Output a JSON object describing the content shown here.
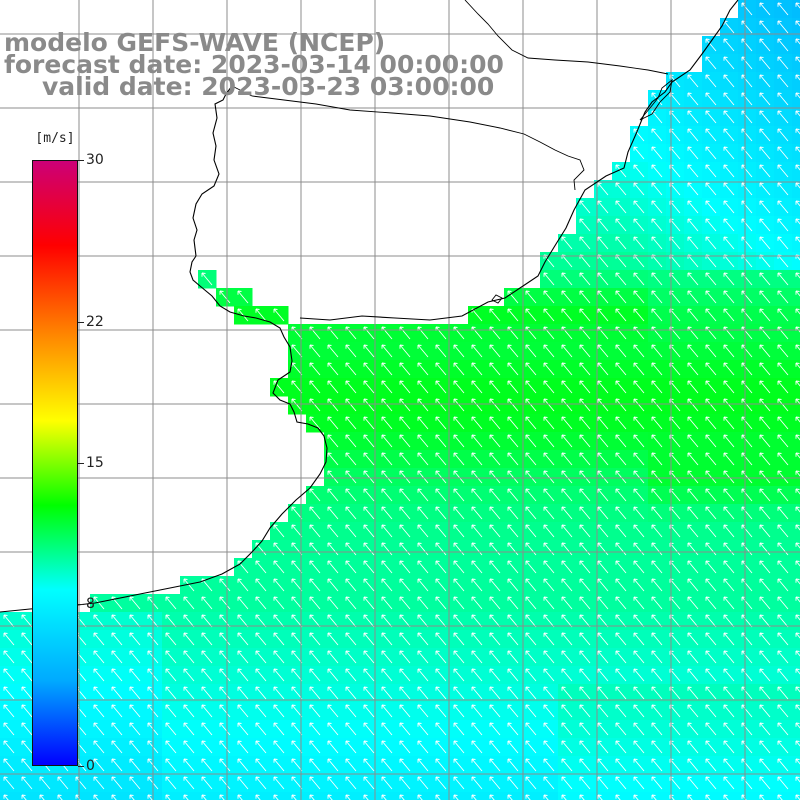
{
  "title": {
    "model": "modelo GEFS-WAVE (NCEP)",
    "forecast": "forecast date: 2023-03-14 00:00:00",
    "valid": "valid date: 2023-03-23 03:00:00"
  },
  "legend": {
    "unit": "[m/s]",
    "ticks": [
      "0",
      "8",
      "15",
      "22",
      "30"
    ],
    "range": [
      0,
      30
    ],
    "colors": [
      "#0000ff",
      "#00aaff",
      "#00ffff",
      "#00ff00",
      "#ffff00",
      "#ff8800",
      "#ff0000",
      "#cc0077"
    ]
  },
  "map": {
    "field": "wind speed",
    "land_color": "#ffffff",
    "grid_color": "#8c8c8c",
    "coast_color": "#000000",
    "arrow_color": "#ffffff",
    "arrow_direction": "toward north-west"
  }
}
